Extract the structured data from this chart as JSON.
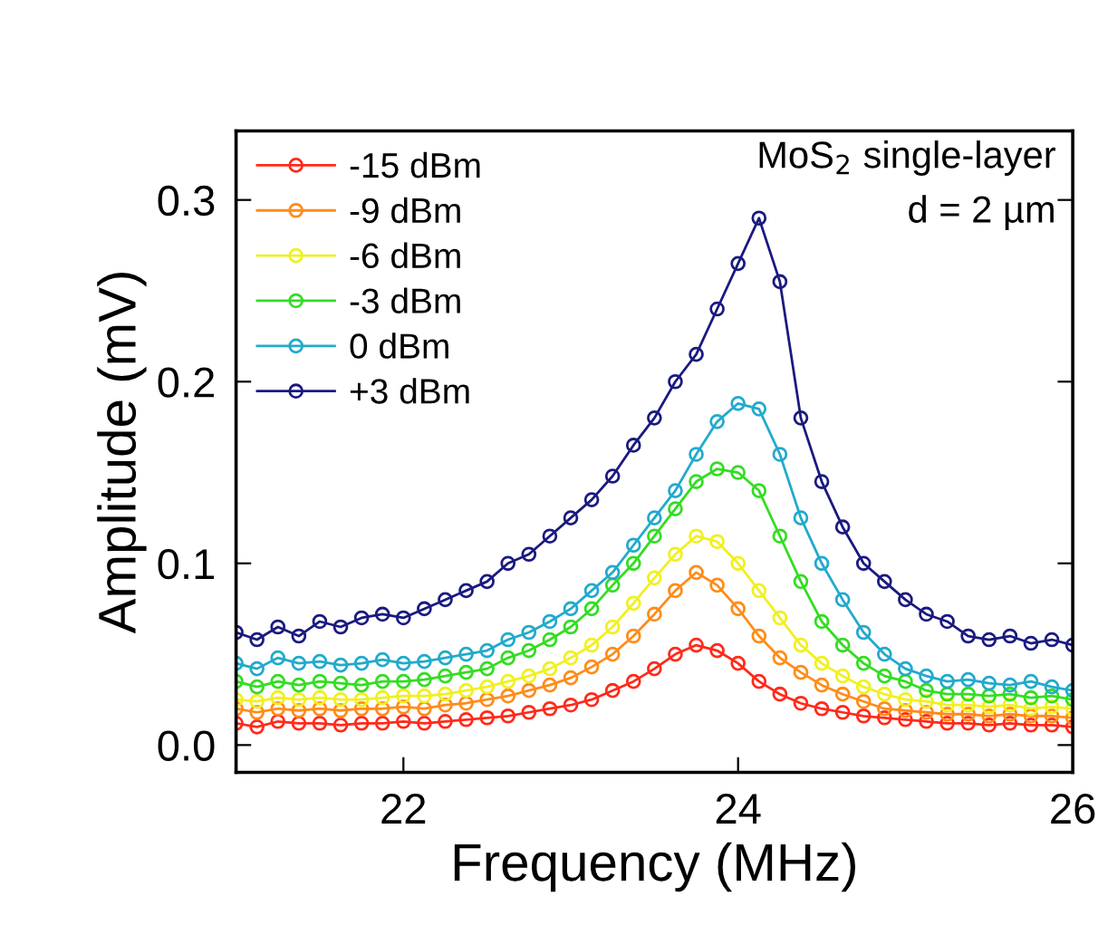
{
  "chart_data": {
    "type": "line",
    "xlabel": "Frequency (MHz)",
    "ylabel": "Amplitude (mV)",
    "annotations": [
      "MoS$_{2}$ single-layer",
      "d = 2 µm"
    ],
    "x": [
      21,
      21.125,
      21.25,
      21.375,
      21.5,
      21.625,
      21.75,
      21.875,
      22,
      22.125,
      22.25,
      22.375,
      22.5,
      22.625,
      22.75,
      22.875,
      23,
      23.125,
      23.25,
      23.375,
      23.5,
      23.625,
      23.75,
      23.875,
      24,
      24.125,
      24.25,
      24.375,
      24.5,
      24.625,
      24.75,
      24.875,
      25,
      25.125,
      25.25,
      25.375,
      25.5,
      25.625,
      25.75,
      25.875,
      26
    ],
    "xlim": [
      21,
      26
    ],
    "xticks": [
      22,
      24,
      26
    ],
    "ylim": [
      -0.015,
      0.338
    ],
    "yticks": [
      {
        "value": 0,
        "label": "0.0"
      },
      0.1,
      0.2,
      0.3
    ],
    "grid": false,
    "legend": "top left",
    "marker": "circle",
    "line_style": "solid",
    "series": [
      {
        "name": "-15 dBm",
        "color": "#ff2a1a",
        "values": [
          0.012,
          0.01,
          0.013,
          0.012,
          0.012,
          0.011,
          0.012,
          0.012,
          0.013,
          0.012,
          0.013,
          0.014,
          0.015,
          0.016,
          0.018,
          0.02,
          0.022,
          0.025,
          0.03,
          0.035,
          0.042,
          0.05,
          0.055,
          0.052,
          0.045,
          0.035,
          0.028,
          0.023,
          0.02,
          0.018,
          0.016,
          0.015,
          0.014,
          0.013,
          0.012,
          0.012,
          0.011,
          0.012,
          0.011,
          0.011,
          0.01
        ]
      },
      {
        "name": "-9 dBm",
        "color": "#ff8c1a",
        "values": [
          0.02,
          0.018,
          0.02,
          0.019,
          0.02,
          0.019,
          0.02,
          0.02,
          0.021,
          0.02,
          0.022,
          0.023,
          0.025,
          0.027,
          0.03,
          0.033,
          0.037,
          0.043,
          0.05,
          0.06,
          0.072,
          0.085,
          0.095,
          0.088,
          0.075,
          0.06,
          0.048,
          0.04,
          0.033,
          0.028,
          0.024,
          0.02,
          0.019,
          0.018,
          0.017,
          0.017,
          0.016,
          0.017,
          0.016,
          0.016,
          0.015
        ]
      },
      {
        "name": "-6 dBm",
        "color": "#f0f020",
        "values": [
          0.025,
          0.024,
          0.026,
          0.025,
          0.026,
          0.025,
          0.025,
          0.026,
          0.027,
          0.027,
          0.028,
          0.03,
          0.032,
          0.035,
          0.038,
          0.042,
          0.048,
          0.055,
          0.065,
          0.078,
          0.092,
          0.105,
          0.115,
          0.112,
          0.1,
          0.085,
          0.07,
          0.055,
          0.045,
          0.038,
          0.032,
          0.028,
          0.025,
          0.024,
          0.022,
          0.022,
          0.021,
          0.022,
          0.02,
          0.021,
          0.02
        ]
      },
      {
        "name": "-3 dBm",
        "color": "#33dd22",
        "values": [
          0.035,
          0.032,
          0.035,
          0.033,
          0.035,
          0.034,
          0.033,
          0.035,
          0.035,
          0.036,
          0.038,
          0.04,
          0.042,
          0.048,
          0.052,
          0.058,
          0.065,
          0.075,
          0.088,
          0.1,
          0.115,
          0.13,
          0.145,
          0.152,
          0.15,
          0.14,
          0.115,
          0.09,
          0.068,
          0.055,
          0.045,
          0.038,
          0.035,
          0.03,
          0.028,
          0.028,
          0.027,
          0.028,
          0.026,
          0.027,
          0.025
        ]
      },
      {
        "name": "0 dBm",
        "color": "#22aacc",
        "values": [
          0.045,
          0.042,
          0.048,
          0.045,
          0.046,
          0.044,
          0.045,
          0.047,
          0.045,
          0.046,
          0.048,
          0.05,
          0.052,
          0.058,
          0.062,
          0.068,
          0.075,
          0.085,
          0.095,
          0.11,
          0.125,
          0.14,
          0.16,
          0.178,
          0.188,
          0.185,
          0.16,
          0.125,
          0.1,
          0.08,
          0.062,
          0.05,
          0.042,
          0.038,
          0.035,
          0.036,
          0.034,
          0.033,
          0.035,
          0.032,
          0.03
        ]
      },
      {
        "name": "+3 dBm",
        "color": "#1a1a80",
        "values": [
          0.062,
          0.058,
          0.065,
          0.06,
          0.068,
          0.065,
          0.07,
          0.072,
          0.07,
          0.075,
          0.08,
          0.085,
          0.09,
          0.1,
          0.105,
          0.115,
          0.125,
          0.135,
          0.148,
          0.165,
          0.18,
          0.2,
          0.215,
          0.24,
          0.265,
          0.29,
          0.255,
          0.18,
          0.145,
          0.12,
          0.1,
          0.09,
          0.08,
          0.072,
          0.068,
          0.06,
          0.058,
          0.06,
          0.056,
          0.058,
          0.055
        ]
      }
    ]
  }
}
